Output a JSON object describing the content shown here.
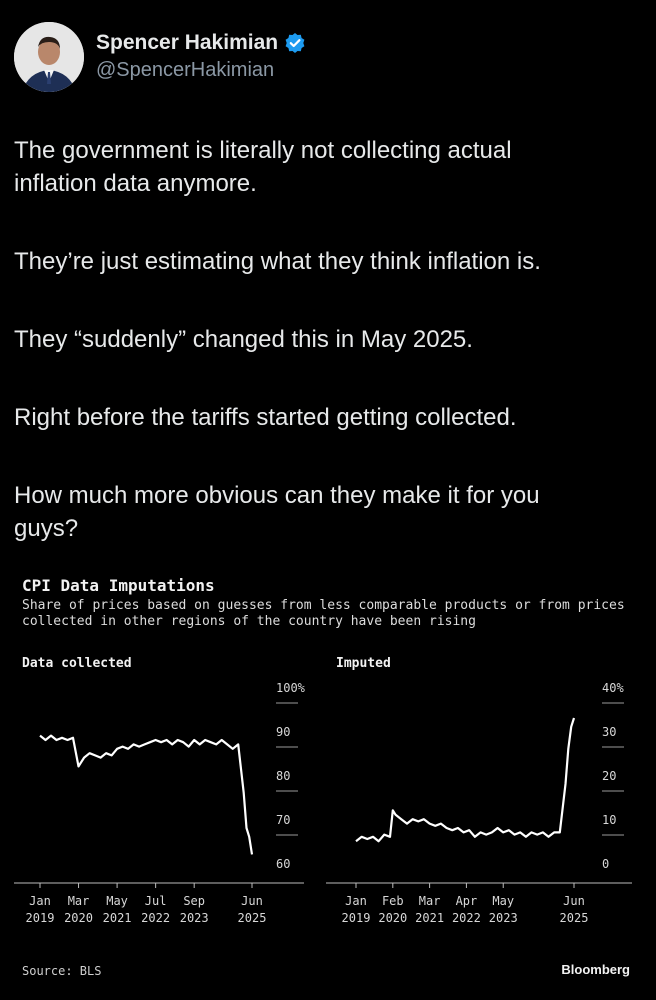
{
  "tweet_header": {
    "display_name": "Spencer Hakimian",
    "handle": "@SpencerHakimian",
    "verified": true,
    "verified_color": "#1d9bf0"
  },
  "tweet_paragraphs": [
    "The government is literally not collecting actual\ninflation data anymore.",
    "They’re just estimating what they think inflation is.",
    "They “suddenly” changed this in May 2025.",
    "Right before the tariffs started getting collected.",
    "How much more obvious can they make it for you\nguys?"
  ],
  "chart_header": {
    "title": "CPI Data Imputations",
    "subtitle": "Share of prices based on guesses from less comparable products or from prices collected in other regions of the country have been rising"
  },
  "chart_footer": {
    "source": "Source: BLS",
    "brand": "Bloomberg"
  },
  "chart_data": [
    {
      "type": "line",
      "title": "Data collected",
      "x": [
        "2019-01",
        "2019-03",
        "2019-05",
        "2019-07",
        "2019-09",
        "2019-11",
        "2020-01",
        "2020-03",
        "2020-05",
        "2020-07",
        "2020-09",
        "2020-11",
        "2021-01",
        "2021-03",
        "2021-05",
        "2021-07",
        "2021-09",
        "2021-11",
        "2022-01",
        "2022-03",
        "2022-05",
        "2022-07",
        "2022-09",
        "2022-11",
        "2023-01",
        "2023-03",
        "2023-05",
        "2023-07",
        "2023-09",
        "2023-11",
        "2024-01",
        "2024-03",
        "2024-05",
        "2024-07",
        "2024-09",
        "2024-11",
        "2025-01",
        "2025-03",
        "2025-04",
        "2025-05",
        "2025-06"
      ],
      "y": [
        91,
        90,
        91,
        90,
        90.5,
        90,
        90.5,
        84,
        86,
        87,
        86.5,
        86,
        87,
        86.5,
        88,
        88.5,
        88,
        89,
        88.5,
        89,
        89.5,
        90,
        89.5,
        90,
        89,
        90,
        89.5,
        88.5,
        90,
        89,
        90,
        89.5,
        89,
        90,
        89,
        88,
        89,
        78,
        70,
        68,
        64
      ],
      "tick_labels": [
        {
          "month": "Jan",
          "year": "2019",
          "x": "2019-01"
        },
        {
          "month": "Mar",
          "year": "2020",
          "x": "2020-03"
        },
        {
          "month": "May",
          "year": "2021",
          "x": "2021-05"
        },
        {
          "month": "Jul",
          "year": "2022",
          "x": "2022-07"
        },
        {
          "month": "Sep",
          "year": "2023",
          "x": "2023-09"
        },
        {
          "month": "Jun",
          "year": "2025",
          "x": "2025-06"
        }
      ],
      "y_ticks": [
        60,
        70,
        80,
        90,
        100
      ],
      "y_tick_labels": [
        "60",
        "70",
        "80",
        "90",
        "100%"
      ],
      "ylim": [
        60,
        100
      ],
      "xlim": [
        "2019-01",
        "2025-06"
      ],
      "grid": false,
      "color": "#ffffff"
    },
    {
      "type": "line",
      "title": "Imputed",
      "x": [
        "2019-01",
        "2019-03",
        "2019-05",
        "2019-07",
        "2019-09",
        "2019-11",
        "2020-01",
        "2020-02",
        "2020-03",
        "2020-05",
        "2020-07",
        "2020-09",
        "2020-11",
        "2021-01",
        "2021-03",
        "2021-05",
        "2021-07",
        "2021-09",
        "2021-11",
        "2022-01",
        "2022-03",
        "2022-05",
        "2022-07",
        "2022-09",
        "2022-11",
        "2023-01",
        "2023-03",
        "2023-05",
        "2023-07",
        "2023-09",
        "2023-11",
        "2024-01",
        "2024-03",
        "2024-05",
        "2024-07",
        "2024-09",
        "2024-11",
        "2025-01",
        "2025-03",
        "2025-04",
        "2025-05",
        "2025-06"
      ],
      "y": [
        7,
        8,
        7.5,
        8,
        7,
        8.5,
        8,
        14,
        13,
        12,
        11,
        12,
        11.5,
        12,
        11,
        10.5,
        11,
        10,
        9.5,
        10,
        9,
        9.5,
        8,
        9,
        8.5,
        9,
        10,
        9,
        9.5,
        8.5,
        9,
        8,
        9,
        8.5,
        9,
        8,
        9,
        9,
        20,
        28,
        33,
        35
      ],
      "tick_labels": [
        {
          "month": "Jan",
          "year": "2019",
          "x": "2019-01"
        },
        {
          "month": "Feb",
          "year": "2020",
          "x": "2020-02"
        },
        {
          "month": "Mar",
          "year": "2021",
          "x": "2021-03"
        },
        {
          "month": "Apr",
          "year": "2022",
          "x": "2022-04"
        },
        {
          "month": "May",
          "year": "2023",
          "x": "2023-05"
        },
        {
          "month": "Jun",
          "year": "2025",
          "x": "2025-06"
        }
      ],
      "y_ticks": [
        0,
        10,
        20,
        30,
        40
      ],
      "y_tick_labels": [
        "0",
        "10",
        "20",
        "30",
        "40%"
      ],
      "ylim": [
        0,
        40
      ],
      "xlim": [
        "2019-01",
        "2025-06"
      ],
      "grid": false,
      "color": "#ffffff"
    }
  ]
}
